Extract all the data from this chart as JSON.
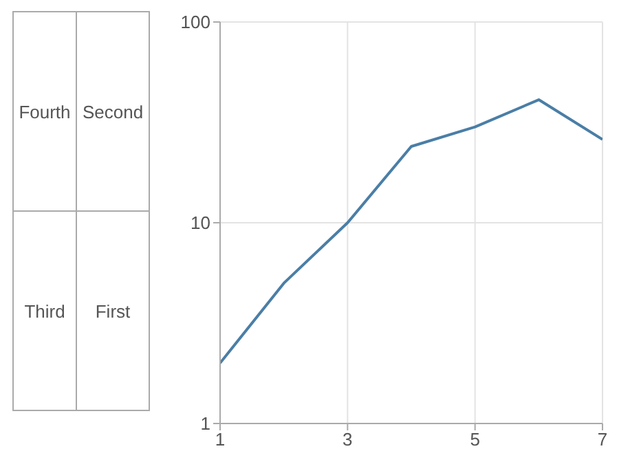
{
  "chart_data": [
    {
      "type": "other",
      "categories": [
        "Fourth",
        "Second",
        "Third",
        "First"
      ]
    },
    {
      "type": "line",
      "x": [
        1,
        2,
        3,
        4,
        5,
        6,
        7
      ],
      "series": [
        {
          "color": "#4a7ea6",
          "values": [
            2,
            5,
            10,
            24,
            30,
            41,
            26
          ]
        }
      ],
      "xlim": [
        1,
        7
      ],
      "xticks": [
        1,
        3,
        5,
        7
      ],
      "ylim": [
        1,
        100
      ],
      "yticks": [
        1,
        10,
        100
      ],
      "log": "y",
      "grid": true,
      "legend": false,
      "marker": "none",
      "line_style": "solid"
    }
  ]
}
